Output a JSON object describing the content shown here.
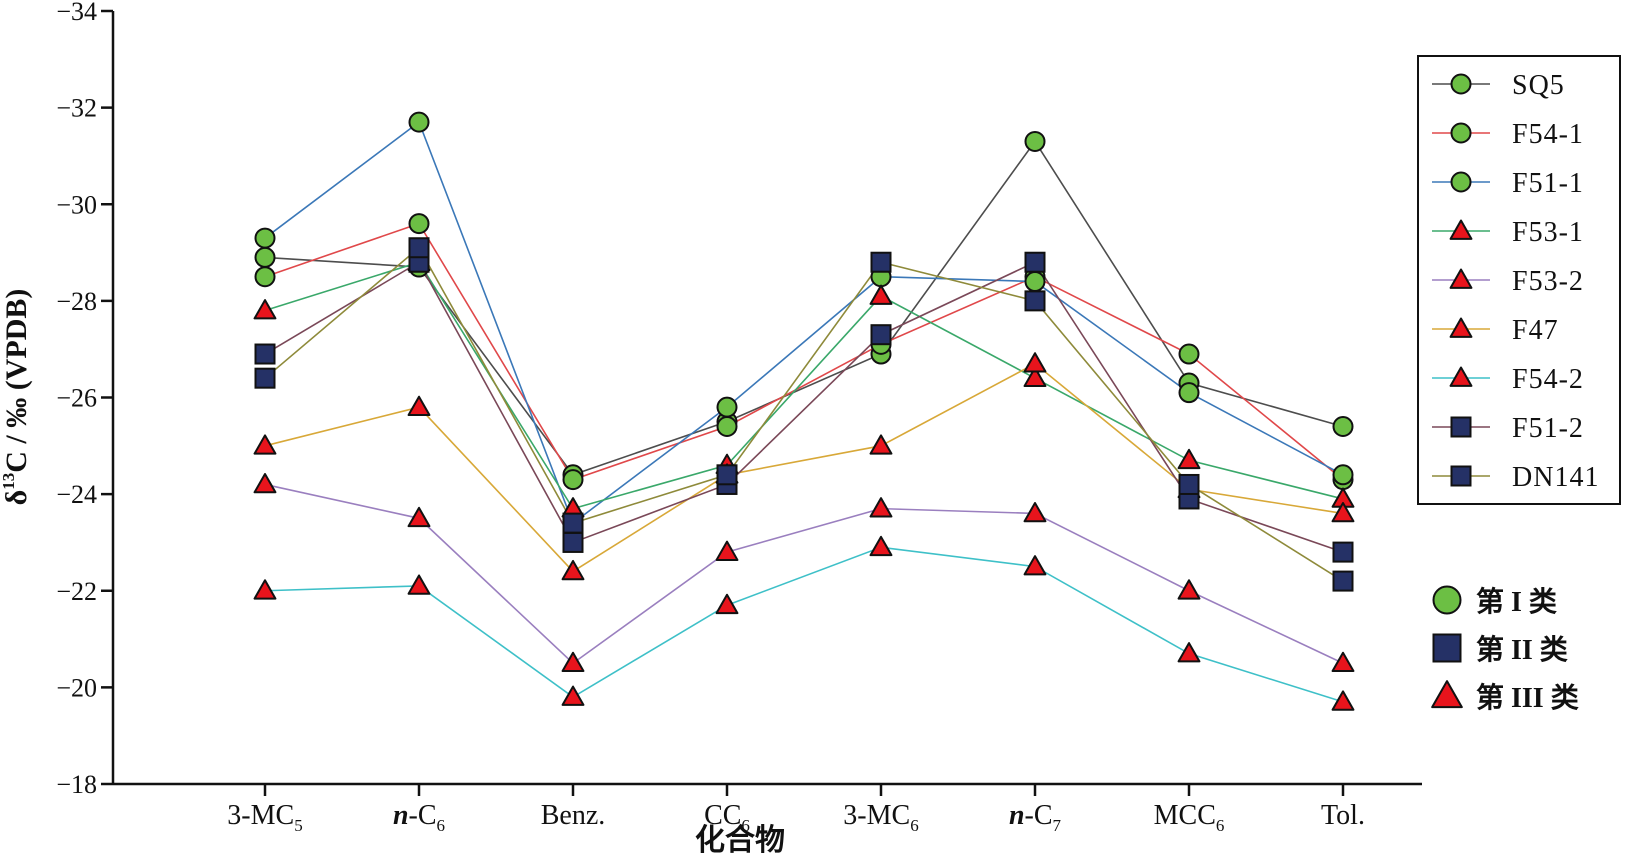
{
  "chart_data": {
    "type": "line",
    "xlabel": "化合物",
    "ylabel": "δ¹³C / ‰ (VPDB)",
    "ylim": [
      -34,
      -18
    ],
    "y_reversed": true,
    "y_ticks": [
      -34,
      -32,
      -30,
      -28,
      -26,
      -24,
      -22,
      -20,
      -18
    ],
    "y_tick_labels": [
      "−34",
      "−32",
      "−30",
      "−28",
      "−26",
      "−24",
      "−22",
      "−20",
      "−18"
    ],
    "categories": [
      {
        "main": "3-MC",
        "sub": "5"
      },
      {
        "italic": "n",
        "main": "-C",
        "sub": "6"
      },
      {
        "main": "Benz.",
        "sub": ""
      },
      {
        "main": "CC",
        "sub": "6"
      },
      {
        "main": "3-MC",
        "sub": "6"
      },
      {
        "italic": "n",
        "main": "-C",
        "sub": "7"
      },
      {
        "main": "MCC",
        "sub": "6"
      },
      {
        "main": "Tol.",
        "sub": ""
      }
    ],
    "grid": false,
    "legend_position": "top-right",
    "series": [
      {
        "name": "SQ5",
        "color": "#4d4d4d",
        "marker": "circle",
        "group": "I",
        "values": [
          -28.9,
          -28.7,
          -24.4,
          -25.5,
          -26.9,
          -31.3,
          -26.3,
          -25.4
        ]
      },
      {
        "name": "F54-1",
        "color": "#e0484a",
        "marker": "circle",
        "group": "I",
        "values": [
          -28.5,
          -29.6,
          -24.3,
          -25.4,
          -27.1,
          -28.5,
          -26.9,
          -24.3
        ]
      },
      {
        "name": "F51-1",
        "color": "#3b78b8",
        "marker": "circle",
        "group": "I",
        "values": [
          -29.3,
          -31.7,
          -23.4,
          -25.8,
          -28.5,
          -28.4,
          -26.1,
          -24.4
        ]
      },
      {
        "name": "F53-1",
        "color": "#3aa86a",
        "marker": "triangle",
        "group": "III",
        "values": [
          -27.8,
          -28.8,
          -23.7,
          -24.6,
          -28.1,
          -26.4,
          -24.7,
          -23.9
        ]
      },
      {
        "name": "F53-2",
        "color": "#9a7fbf",
        "marker": "triangle",
        "group": "III",
        "values": [
          -24.2,
          -23.5,
          -20.5,
          -22.8,
          -23.7,
          -23.6,
          -22.0,
          -20.5
        ]
      },
      {
        "name": "F47",
        "color": "#d8a838",
        "marker": "triangle",
        "group": "III",
        "values": [
          -25.0,
          -25.8,
          -22.4,
          -24.4,
          -25.0,
          -26.7,
          -24.1,
          -23.6
        ]
      },
      {
        "name": "F54-2",
        "color": "#3ec0c8",
        "marker": "triangle",
        "group": "III",
        "values": [
          -22.0,
          -22.1,
          -19.8,
          -21.7,
          -22.9,
          -22.5,
          -20.7,
          -19.7
        ]
      },
      {
        "name": "F51-2",
        "color": "#7a4858",
        "marker": "square",
        "group": "II",
        "values": [
          -26.9,
          -28.8,
          -23.0,
          -24.2,
          -27.3,
          -28.8,
          -23.9,
          -22.8
        ]
      },
      {
        "name": "DN141",
        "color": "#8e8a3a",
        "marker": "square",
        "group": "II",
        "values": [
          -26.4,
          -29.1,
          -23.4,
          -24.4,
          -28.8,
          -28.0,
          -24.2,
          -22.2
        ]
      }
    ],
    "marker_styles": {
      "circle": {
        "fill": "#6cbf44",
        "stroke": "#111111"
      },
      "square": {
        "fill": "#253166",
        "stroke": "#111111"
      },
      "triangle": {
        "fill": "#e8141c",
        "stroke": "#111111"
      }
    },
    "group_legend": [
      {
        "marker": "circle",
        "label": "第 I 类"
      },
      {
        "marker": "square",
        "label": "第 II 类"
      },
      {
        "marker": "triangle",
        "label": "第 III 类"
      }
    ]
  }
}
